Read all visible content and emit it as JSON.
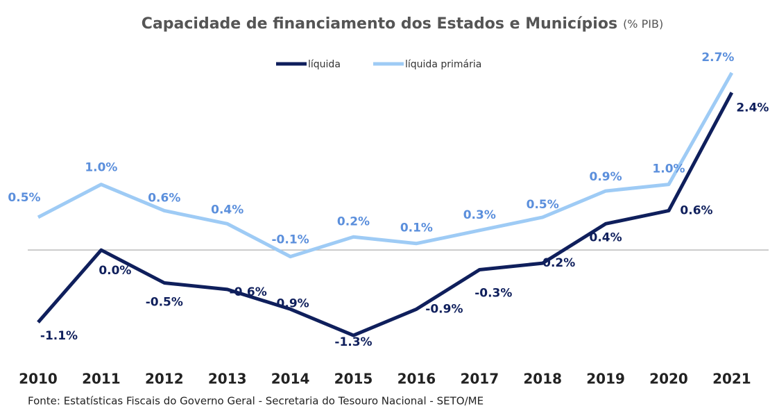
{
  "chart_data": {
    "type": "line",
    "title": "Capacidade de financiamento dos Estados e Municípios",
    "unit": "(% PIB)",
    "source": "Fonte: Estatísticas Fiscais do Governo Geral - Secretaria do Tesouro Nacional - SETO/ME",
    "categories": [
      "2010",
      "2011",
      "2012",
      "2013",
      "2014",
      "2015",
      "2016",
      "2017",
      "2018",
      "2019",
      "2020",
      "2021"
    ],
    "series": [
      {
        "name": "líquida",
        "color": "#0f1f5c",
        "values": [
          -1.1,
          0.0,
          -0.5,
          -0.6,
          -0.9,
          -1.3,
          -0.9,
          -0.3,
          -0.2,
          0.4,
          0.6,
          2.4
        ],
        "value_labels": [
          "-1.1%",
          "0.0%",
          "-0.5%",
          "-0.6%",
          "-0.9%",
          "-1.3%",
          "-0.9%",
          "-0.3%",
          "-0.2%",
          "0.4%",
          "0.6%",
          "2.4%"
        ]
      },
      {
        "name": "líquida primária",
        "color": "#9ecbf5",
        "values": [
          0.5,
          1.0,
          0.6,
          0.4,
          -0.1,
          0.2,
          0.1,
          0.3,
          0.5,
          0.9,
          1.0,
          2.7
        ],
        "value_labels": [
          "0.5%",
          "1.0%",
          "0.6%",
          "0.4%",
          "-0.1%",
          "0.2%",
          "0.1%",
          "0.3%",
          "0.5%",
          "0.9%",
          "1.0%",
          "2.7%"
        ]
      }
    ],
    "ylim": [
      -1.5,
      2.9
    ],
    "legend": "top"
  }
}
